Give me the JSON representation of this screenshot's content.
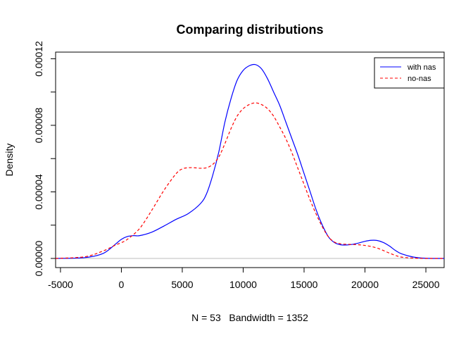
{
  "chart_data": {
    "type": "line",
    "title": "Comparing distributions",
    "xlabel": "N = 53   Bandwidth = 1352",
    "ylabel": "Density",
    "xlim": [
      -5400,
      26500
    ],
    "ylim": [
      -5.5e-06,
      0.000124
    ],
    "x_ticks": [
      -5000,
      0,
      5000,
      10000,
      15000,
      20000,
      25000
    ],
    "x_tick_labels": [
      "-5000",
      "0",
      "5000",
      "10000",
      "15000",
      "20000",
      "25000"
    ],
    "y_ticks": [
      0,
      4e-05,
      8e-05,
      0.00012
    ],
    "y_tick_labels": [
      "0.00000",
      "0.00004",
      "0.00008",
      "0.00012"
    ],
    "minor_y_ticks": [
      2e-05,
      6e-05,
      0.0001
    ],
    "baseline": 0,
    "grid": false,
    "legend_position": "top-right",
    "series": [
      {
        "name": "with nas",
        "color": "#0000ff",
        "line_style": "solid",
        "x": [
          -5400,
          -3000,
          -1500,
          -500,
          0,
          500,
          1000,
          1500,
          2500,
          3500,
          4500,
          5500,
          6500,
          7000,
          7500,
          8000,
          8500,
          9000,
          9500,
          10000,
          10500,
          11000,
          11500,
          12000,
          12500,
          13000,
          13500,
          14000,
          14500,
          15000,
          15500,
          16000,
          16500,
          17000,
          17500,
          18000,
          18500,
          19000,
          19500,
          20000,
          20500,
          21000,
          21500,
          22000,
          22500,
          23000,
          24000,
          25000,
          26500
        ],
        "y": [
          0,
          5e-07,
          3e-06,
          8.5e-06,
          1.15e-05,
          1.32e-05,
          1.37e-05,
          1.37e-05,
          1.58e-05,
          1.95e-05,
          2.35e-05,
          2.7e-05,
          3.3e-05,
          3.9e-05,
          5e-05,
          6.4e-05,
          8.2e-05,
          9.6e-05,
          0.000107,
          0.000113,
          0.0001158,
          0.0001165,
          0.000114,
          0.000108,
          0.0001,
          9.2e-05,
          8.2e-05,
          7.2e-05,
          6.2e-05,
          5.1e-05,
          4e-05,
          2.9e-05,
          2e-05,
          1.3e-05,
          9.5e-06,
          8.2e-06,
          8.1e-06,
          8.5e-06,
          9.3e-06,
          1.03e-05,
          1.09e-05,
          1.08e-05,
          9.6e-06,
          7.5e-06,
          4.8e-06,
          2.8e-06,
          8e-07,
          1e-07,
          0
        ]
      },
      {
        "name": "no-nas",
        "color": "#ff0000",
        "line_style": "dashed",
        "x": [
          -5400,
          -3000,
          -1500,
          -500,
          0,
          500,
          1500,
          2500,
          3500,
          4500,
          5000,
          5500,
          6000,
          6500,
          7000,
          7500,
          8000,
          8500,
          9000,
          9500,
          10000,
          10500,
          11000,
          11500,
          12000,
          12500,
          13000,
          13500,
          14000,
          14500,
          15000,
          15500,
          16000,
          16500,
          17000,
          17500,
          18000,
          18500,
          19000,
          19500,
          20000,
          20500,
          21000,
          21500,
          22000,
          22500,
          23000,
          24000,
          25000,
          26500
        ],
        "y": [
          0,
          1e-06,
          4.5e-06,
          8e-06,
          9.5e-06,
          1.15e-05,
          1.8e-05,
          2.9e-05,
          4.1e-05,
          5.1e-05,
          5.38e-05,
          5.45e-05,
          5.45e-05,
          5.42e-05,
          5.45e-05,
          5.65e-05,
          6.1e-05,
          6.9e-05,
          7.8e-05,
          8.55e-05,
          9e-05,
          9.25e-05,
          9.35e-05,
          9.25e-05,
          9e-05,
          8.55e-05,
          7.9e-05,
          7.2e-05,
          6.35e-05,
          5.4e-05,
          4.45e-05,
          3.5e-05,
          2.65e-05,
          1.9e-05,
          1.3e-05,
          9.8e-06,
          8.8e-06,
          8.5e-06,
          8.4e-06,
          8.2e-06,
          7.8e-06,
          7.2e-06,
          6.2e-06,
          4.8e-06,
          3.2e-06,
          1.8e-06,
          8e-07,
          2e-07,
          0,
          0
        ]
      }
    ]
  }
}
